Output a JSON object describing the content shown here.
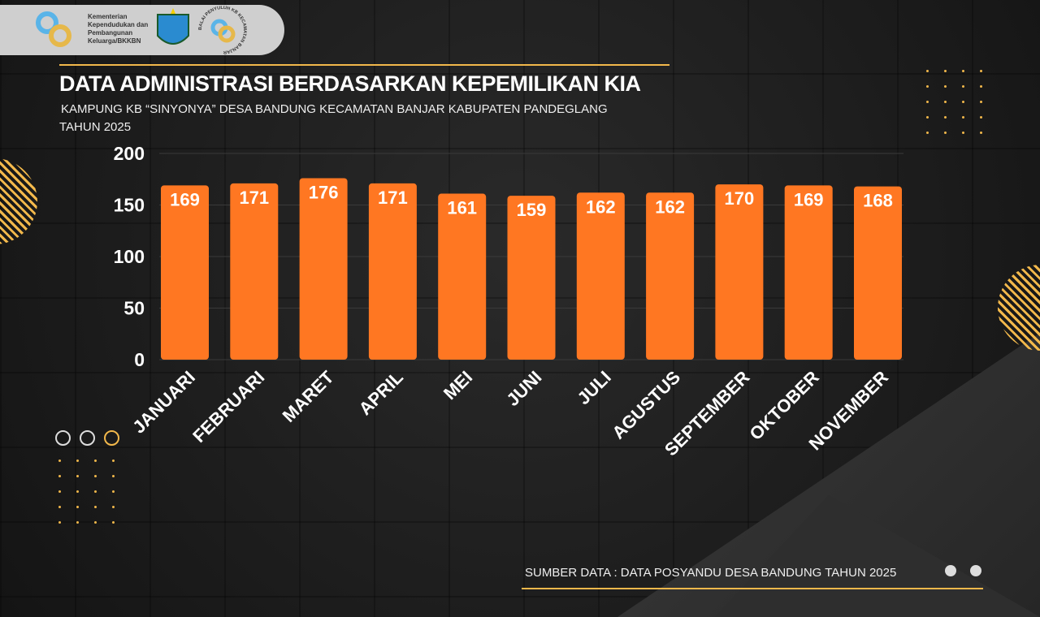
{
  "header": {
    "org_text": "Kementerian Kependudukan dan Pembangunan Keluarga/BKKBN",
    "logo3_text": "BALAI PENYULUH KB KECAMATAN BANJAR"
  },
  "title": "DATA ADMINISTRASI BERDASARKAN KEPEMILIKAN KIA",
  "subtitle_line1": "KAMPUNG KB “SINYONYA” DESA BANDUNG KECAMATAN BANJAR KABUPATEN PANDEGLANG",
  "subtitle_line2": "TAHUN 2025",
  "source": "SUMBER DATA : DATA POSYANDU  DESA BANDUNG TAHUN 2025",
  "colors": {
    "bar": "#ff7722",
    "accent": "#f2b84b"
  },
  "chart_data": {
    "type": "bar",
    "categories": [
      "JANUARI",
      "FEBRUARI",
      "MARET",
      "APRIL",
      "MEI",
      "JUNI",
      "JULI",
      "AGUSTUS",
      "SEPTEMBER",
      "OKTOBER",
      "NOVEMBER"
    ],
    "values": [
      169,
      171,
      176,
      171,
      161,
      159,
      162,
      162,
      170,
      169,
      168
    ],
    "yticks": [
      "0",
      "50",
      "100",
      "150",
      "200"
    ],
    "ylim": [
      0,
      200
    ],
    "grid": true,
    "legend": "none"
  }
}
